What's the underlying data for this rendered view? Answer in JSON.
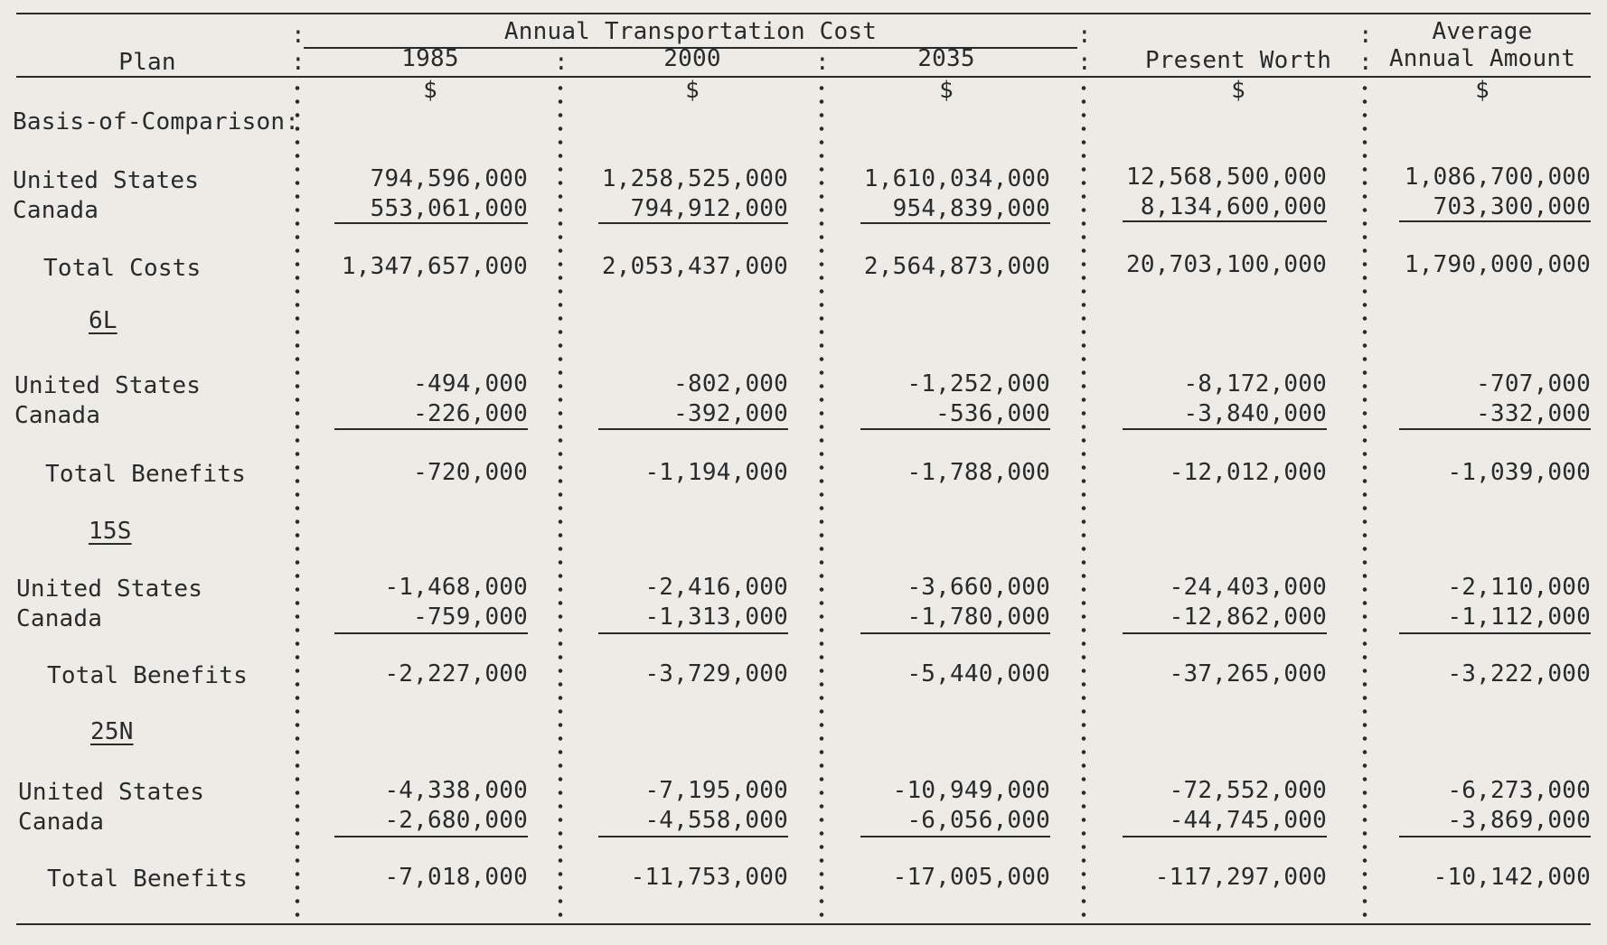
{
  "header": {
    "plan": "Plan",
    "annual_cost": "Annual Transportation Cost",
    "y1985": "1985",
    "y2000": "2000",
    "y2035": "2035",
    "present_worth": "Present Worth",
    "average": "Average",
    "annual_amount": "Annual Amount",
    "unit": "$"
  },
  "basis": {
    "label": "Basis-of-Comparison:",
    "us": {
      "label": "United States",
      "v1985": "794,596,000",
      "v2000": "1,258,525,000",
      "v2035": "1,610,034,000",
      "pw": "12,568,500,000",
      "avg": "1,086,700,000"
    },
    "ca": {
      "label": "Canada",
      "v1985": "553,061,000",
      "v2000": "794,912,000",
      "v2035": "954,839,000",
      "pw": "8,134,600,000",
      "avg": "703,300,000"
    },
    "total": {
      "label": "Total Costs",
      "v1985": "1,347,657,000",
      "v2000": "2,053,437,000",
      "v2035": "2,564,873,000",
      "pw": "20,703,100,000",
      "avg": "1,790,000,000"
    }
  },
  "plan6l": {
    "label": "6L",
    "us": {
      "label": "United States",
      "v1985": "-494,000",
      "v2000": "-802,000",
      "v2035": "-1,252,000",
      "pw": "-8,172,000",
      "avg": "-707,000"
    },
    "ca": {
      "label": "Canada",
      "v1985": "-226,000",
      "v2000": "-392,000",
      "v2035": "-536,000",
      "pw": "-3,840,000",
      "avg": "-332,000"
    },
    "total": {
      "label": "Total Benefits",
      "v1985": "-720,000",
      "v2000": "-1,194,000",
      "v2035": "-1,788,000",
      "pw": "-12,012,000",
      "avg": "-1,039,000"
    }
  },
  "plan15s": {
    "label": "15S",
    "us": {
      "label": "United States",
      "v1985": "-1,468,000",
      "v2000": "-2,416,000",
      "v2035": "-3,660,000",
      "pw": "-24,403,000",
      "avg": "-2,110,000"
    },
    "ca": {
      "label": "Canada",
      "v1985": "-759,000",
      "v2000": "-1,313,000",
      "v2035": "-1,780,000",
      "pw": "-12,862,000",
      "avg": "-1,112,000"
    },
    "total": {
      "label": "Total Benefits",
      "v1985": "-2,227,000",
      "v2000": "-3,729,000",
      "v2035": "-5,440,000",
      "pw": "-37,265,000",
      "avg": "-3,222,000"
    }
  },
  "plan25n": {
    "label": "25N",
    "us": {
      "label": "United States",
      "v1985": "-4,338,000",
      "v2000": "-7,195,000",
      "v2035": "-10,949,000",
      "pw": "-72,552,000",
      "avg": "-6,273,000"
    },
    "ca": {
      "label": "Canada",
      "v1985": "-2,680,000",
      "v2000": "-4,558,000",
      "v2035": "-6,056,000",
      "pw": "-44,745,000",
      "avg": "-3,869,000"
    },
    "total": {
      "label": "Total Benefits",
      "v1985": "-7,018,000",
      "v2000": "-11,753,000",
      "v2035": "-17,005,000",
      "pw": "-117,297,000",
      "avg": "-10,142,000"
    }
  }
}
